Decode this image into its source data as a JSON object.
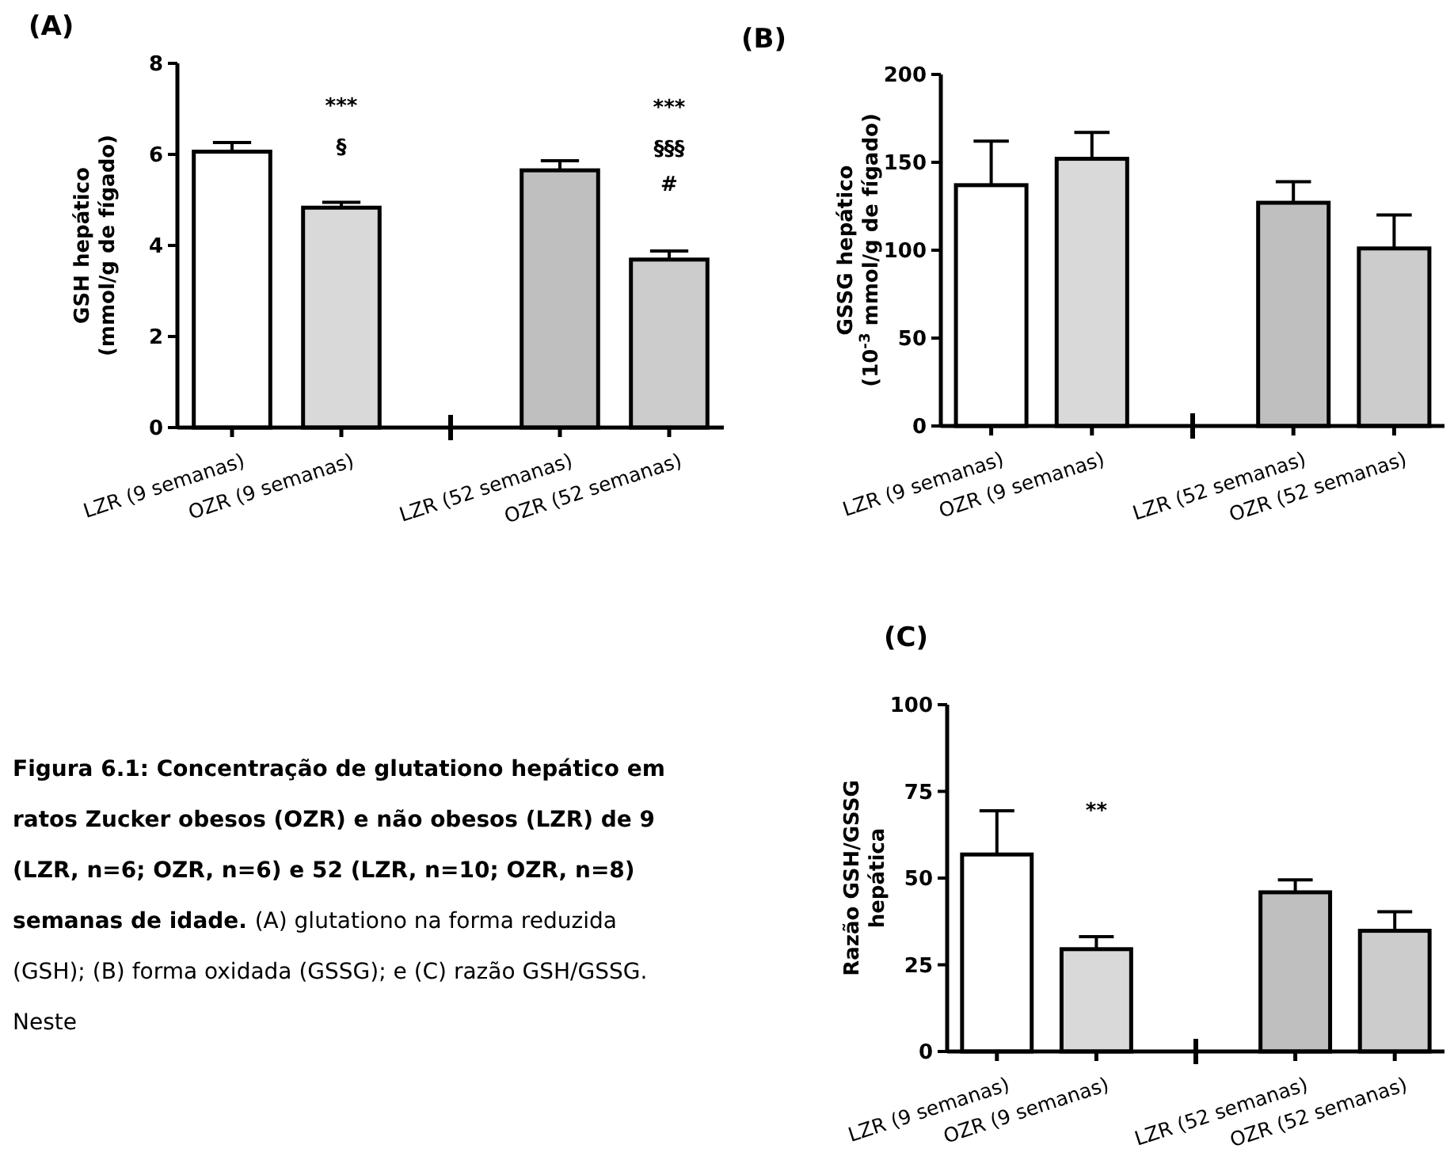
{
  "chart_data": [
    {
      "type": "bar",
      "title": "(A)",
      "ylabel": "GSH hepático\n(mmol/g de fígado)",
      "categories": [
        "LZR (9 semanas)",
        "OZR (9 semanas)",
        null,
        "LZR (52 semanas)",
        "OZR (52 semanas)"
      ],
      "values": [
        6.06,
        4.83,
        null,
        5.65,
        3.69
      ],
      "errors": [
        0.2,
        0.12,
        null,
        0.21,
        0.19
      ],
      "colors": [
        "#ffffff",
        "#d9d9d9",
        null,
        "#bfbfbf",
        "#cccccc"
      ],
      "ylim": [
        0,
        8
      ],
      "yticks": [
        0,
        2,
        4,
        6,
        8
      ],
      "annotations": [
        "***",
        "§",
        "***",
        "§§§",
        "#"
      ]
    },
    {
      "type": "bar",
      "title": "(B)",
      "ylabel": "GSSG hepático\n(10$^{-3}$ mmol/g de fígado)",
      "categories": [
        "LZR (9 semanas)",
        "OZR (9 semanas)",
        null,
        "LZR (52 semanas)",
        "OZR (52 semanas)"
      ],
      "values": [
        137,
        152,
        null,
        127,
        101
      ],
      "errors": [
        25,
        15,
        null,
        12,
        19
      ],
      "colors": [
        "#ffffff",
        "#d9d9d9",
        null,
        "#bfbfbf",
        "#cccccc"
      ],
      "ylim": [
        0,
        200
      ],
      "yticks": [
        0,
        50,
        100,
        150,
        200
      ]
    },
    {
      "type": "bar",
      "title": "(C)",
      "ylabel": "Razão GSH/GSSG\nhepática",
      "categories": [
        "LZR (9 semanas)",
        "OZR (9 semanas)",
        null,
        "LZR (52 semanas)",
        "OZR (52 semanas)"
      ],
      "values": [
        56.8,
        29.5,
        null,
        45.9,
        34.8
      ],
      "errors": [
        12.6,
        3.6,
        null,
        3.6,
        5.5
      ],
      "colors": [
        "#ffffff",
        "#d9d9d9",
        null,
        "#bfbfbf",
        "#cccccc"
      ],
      "ylim": [
        0,
        100
      ],
      "yticks": [
        0,
        25,
        50,
        75,
        100
      ],
      "annotations": [
        "**"
      ]
    },
    {
      "type": "other",
      "annotations": [
        "Figura 6.1: Concentração de glutationo hepático em ratos Zucker obesos (OZR) e não obesos (LZR) de 9 (LZR, n=6; OZR, n=6) e 52 (LZR, n=10; OZR, n=8) semanas de idade.",
        "(A) glutationo na forma reduzida (GSH); (B) forma oxidada (GSSG); e (C) razão GSH/GSSG. Neste"
      ]
    }
  ]
}
